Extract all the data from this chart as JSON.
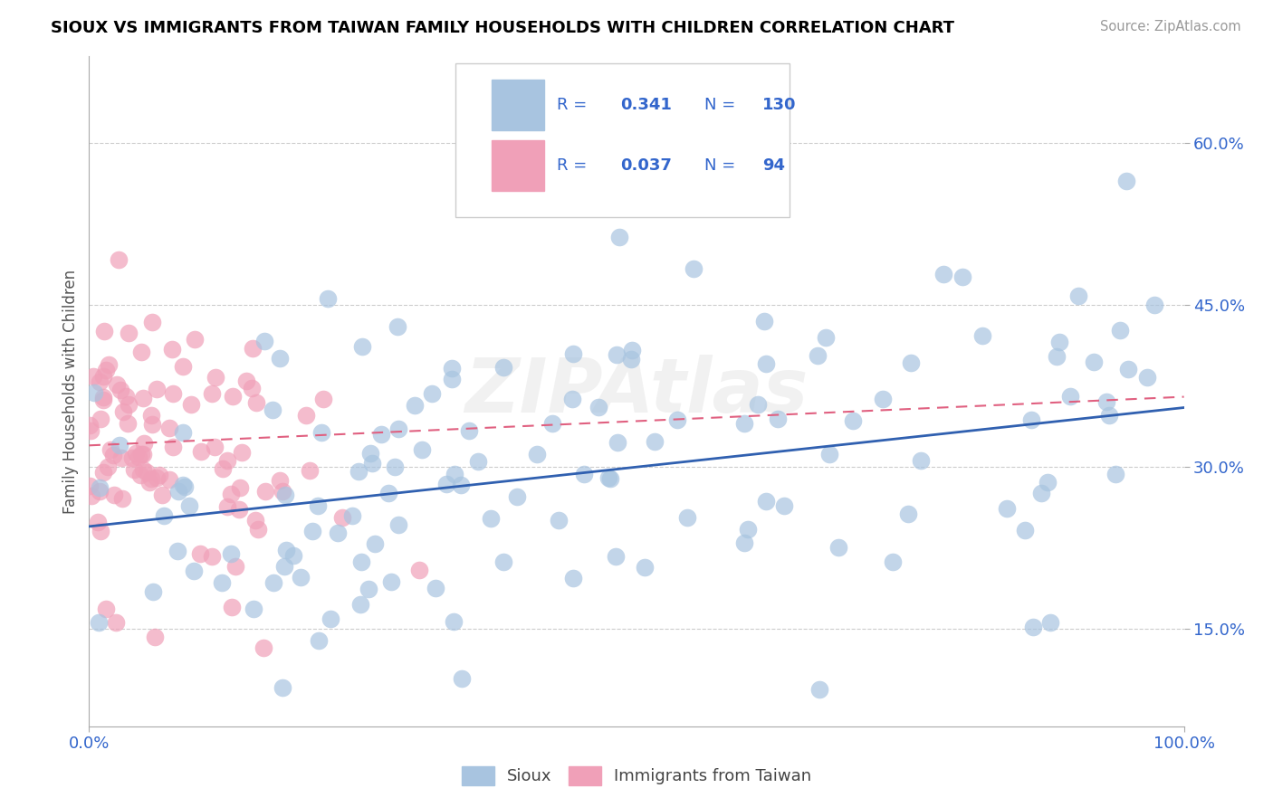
{
  "title": "SIOUX VS IMMIGRANTS FROM TAIWAN FAMILY HOUSEHOLDS WITH CHILDREN CORRELATION CHART",
  "source_text": "Source: ZipAtlas.com",
  "ylabel": "Family Households with Children",
  "watermark": "ZIPAtlas",
  "sioux_R": 0.341,
  "sioux_N": 130,
  "taiwan_R": 0.037,
  "taiwan_N": 94,
  "sioux_color": "#a8c4e0",
  "taiwan_color": "#f0a0b8",
  "sioux_line_color": "#3060b0",
  "taiwan_line_color": "#e06080",
  "legend_text_color": "#3366cc",
  "xlim": [
    0.0,
    1.0
  ],
  "ylim": [
    0.06,
    0.68
  ],
  "yticks": [
    0.15,
    0.3,
    0.45,
    0.6
  ],
  "ytick_labels": [
    "15.0%",
    "30.0%",
    "45.0%",
    "60.0%"
  ],
  "xtick_labels": [
    "0.0%",
    "100.0%"
  ],
  "background_color": "#ffffff",
  "grid_color": "#cccccc",
  "tick_color": "#3366cc"
}
